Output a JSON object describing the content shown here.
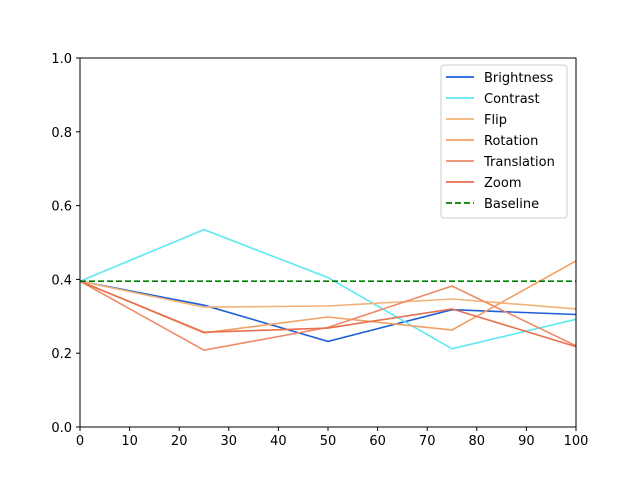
{
  "chart_data": {
    "type": "line",
    "x": [
      0,
      25,
      50,
      75,
      100
    ],
    "xlim": [
      0,
      100
    ],
    "ylim": [
      0,
      1.0
    ],
    "xticks": [
      "0",
      "10",
      "20",
      "30",
      "40",
      "50",
      "60",
      "70",
      "80",
      "90",
      "100"
    ],
    "yticks": [
      "0.0",
      "0.2",
      "0.4",
      "0.6",
      "0.8",
      "1.0"
    ],
    "legend_position": "top-right",
    "grid": false,
    "series": [
      {
        "name": "Brightness",
        "color": "#1f5fd6",
        "dashed": false,
        "values": [
          0.395,
          0.33,
          0.232,
          0.318,
          0.305
        ]
      },
      {
        "name": "Contrast",
        "color": "#5ee8f2",
        "dashed": false,
        "values": [
          0.395,
          0.535,
          0.405,
          0.212,
          0.292
        ]
      },
      {
        "name": "Flip",
        "color": "#f2b279",
        "dashed": false,
        "values": [
          0.395,
          0.325,
          0.328,
          0.347,
          0.32
        ]
      },
      {
        "name": "Rotation",
        "color": "#f2a064",
        "dashed": false,
        "values": [
          0.395,
          0.255,
          0.298,
          0.263,
          0.45
        ]
      },
      {
        "name": "Translation",
        "color": "#ee8a66",
        "dashed": false,
        "values": [
          0.395,
          0.208,
          0.27,
          0.382,
          0.22
        ]
      },
      {
        "name": "Zoom",
        "color": "#e8704f",
        "dashed": false,
        "values": [
          0.395,
          0.257,
          0.268,
          0.32,
          0.218
        ]
      },
      {
        "name": "Baseline",
        "color": "#008000",
        "dashed": true,
        "values": [
          0.395,
          0.395,
          0.395,
          0.395,
          0.395
        ]
      }
    ]
  }
}
